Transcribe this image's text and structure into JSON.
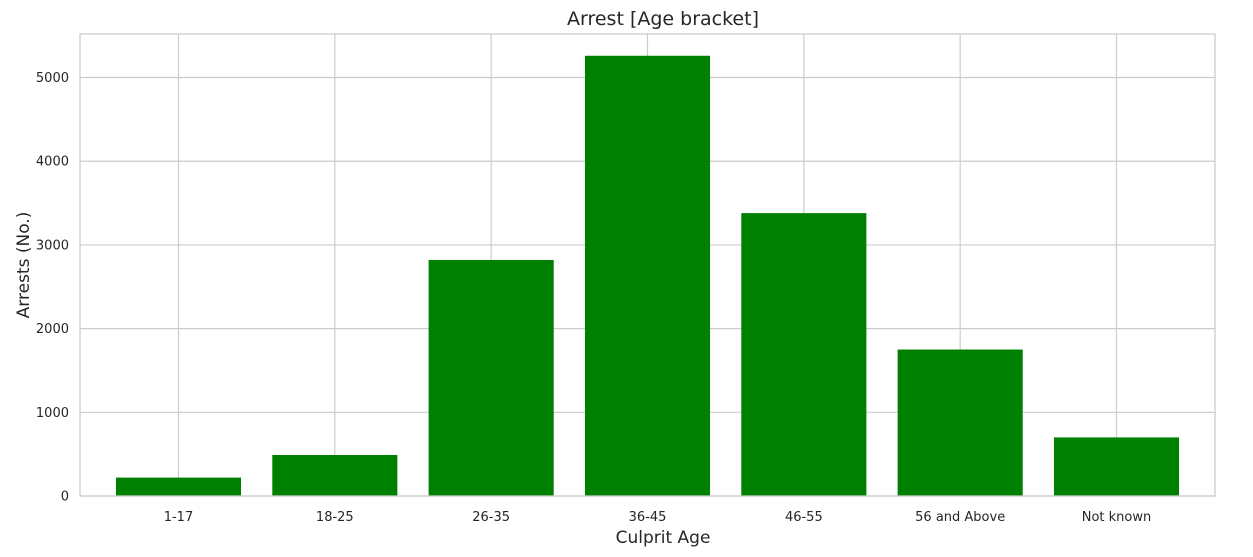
{
  "chart_data": {
    "type": "bar",
    "title": "Arrest [Age bracket]",
    "xlabel": "Culprit Age",
    "ylabel": "Arrests (No.)",
    "categories": [
      "1-17",
      "18-25",
      "26-35",
      "36-45",
      "46-55",
      "56 and Above",
      "Not known"
    ],
    "values": [
      220,
      490,
      2820,
      5260,
      3380,
      1750,
      700
    ],
    "ylim": [
      0,
      5520
    ],
    "yticks": [
      0,
      1000,
      2000,
      3000,
      4000,
      5000
    ],
    "grid": true,
    "bar_color": "#008000",
    "grid_color": "#cccccc"
  }
}
